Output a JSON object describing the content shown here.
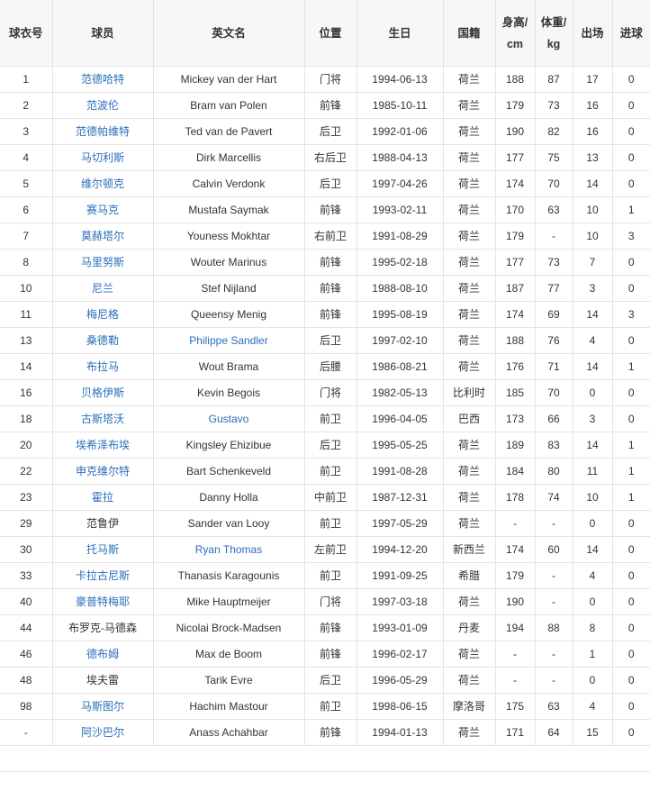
{
  "colors": {
    "link": "#2a6ebb",
    "text": "#333333",
    "header_bg": "#f7f7f7",
    "border": "#e4e4e4"
  },
  "headers": [
    "球衣号",
    "球员",
    "英文名",
    "位置",
    "生日",
    "国籍",
    "身高/cm",
    "体重/kg",
    "出场",
    "进球"
  ],
  "rows": [
    {
      "no": "1",
      "cn": "范德哈特",
      "cn_link": true,
      "en": "Mickey van der Hart",
      "en_link": false,
      "pos": "门将",
      "birth": "1994-06-13",
      "nat": "荷兰",
      "h": "188",
      "w": "87",
      "apps": "17",
      "goals": "0"
    },
    {
      "no": "2",
      "cn": "范波伦",
      "cn_link": true,
      "en": "Bram van Polen",
      "en_link": false,
      "pos": "前锋",
      "birth": "1985-10-11",
      "nat": "荷兰",
      "h": "179",
      "w": "73",
      "apps": "16",
      "goals": "0"
    },
    {
      "no": "3",
      "cn": "范德帕维特",
      "cn_link": true,
      "en": "Ted van de Pavert",
      "en_link": false,
      "pos": "后卫",
      "birth": "1992-01-06",
      "nat": "荷兰",
      "h": "190",
      "w": "82",
      "apps": "16",
      "goals": "0"
    },
    {
      "no": "4",
      "cn": "马切利斯",
      "cn_link": true,
      "en": "Dirk Marcellis",
      "en_link": false,
      "pos": "右后卫",
      "birth": "1988-04-13",
      "nat": "荷兰",
      "h": "177",
      "w": "75",
      "apps": "13",
      "goals": "0"
    },
    {
      "no": "5",
      "cn": "维尔顿克",
      "cn_link": true,
      "en": "Calvin Verdonk",
      "en_link": false,
      "pos": "后卫",
      "birth": "1997-04-26",
      "nat": "荷兰",
      "h": "174",
      "w": "70",
      "apps": "14",
      "goals": "0"
    },
    {
      "no": "6",
      "cn": "赛马克",
      "cn_link": true,
      "en": "Mustafa Saymak",
      "en_link": false,
      "pos": "前锋",
      "birth": "1993-02-11",
      "nat": "荷兰",
      "h": "170",
      "w": "63",
      "apps": "10",
      "goals": "1"
    },
    {
      "no": "7",
      "cn": "莫赫塔尔",
      "cn_link": true,
      "en": "Youness Mokhtar",
      "en_link": false,
      "pos": "右前卫",
      "birth": "1991-08-29",
      "nat": "荷兰",
      "h": "179",
      "w": "-",
      "apps": "10",
      "goals": "3"
    },
    {
      "no": "8",
      "cn": "马里努斯",
      "cn_link": true,
      "en": "Wouter Marinus",
      "en_link": false,
      "pos": "前锋",
      "birth": "1995-02-18",
      "nat": "荷兰",
      "h": "177",
      "w": "73",
      "apps": "7",
      "goals": "0"
    },
    {
      "no": "10",
      "cn": "尼兰",
      "cn_link": true,
      "en": "Stef Nijland",
      "en_link": false,
      "pos": "前锋",
      "birth": "1988-08-10",
      "nat": "荷兰",
      "h": "187",
      "w": "77",
      "apps": "3",
      "goals": "0"
    },
    {
      "no": "11",
      "cn": "梅尼格",
      "cn_link": true,
      "en": "Queensy Menig",
      "en_link": false,
      "pos": "前锋",
      "birth": "1995-08-19",
      "nat": "荷兰",
      "h": "174",
      "w": "69",
      "apps": "14",
      "goals": "3"
    },
    {
      "no": "13",
      "cn": "桑德勒",
      "cn_link": true,
      "en": "Philippe Sandler",
      "en_link": true,
      "pos": "后卫",
      "birth": "1997-02-10",
      "nat": "荷兰",
      "h": "188",
      "w": "76",
      "apps": "4",
      "goals": "0"
    },
    {
      "no": "14",
      "cn": "布拉马",
      "cn_link": true,
      "en": "Wout Brama",
      "en_link": false,
      "pos": "后腰",
      "birth": "1986-08-21",
      "nat": "荷兰",
      "h": "176",
      "w": "71",
      "apps": "14",
      "goals": "1"
    },
    {
      "no": "16",
      "cn": "贝格伊斯",
      "cn_link": true,
      "en": "Kevin Begois",
      "en_link": false,
      "pos": "门将",
      "birth": "1982-05-13",
      "nat": "比利时",
      "h": "185",
      "w": "70",
      "apps": "0",
      "goals": "0"
    },
    {
      "no": "18",
      "cn": "古斯塔沃",
      "cn_link": true,
      "en": "Gustavo",
      "en_link": true,
      "pos": "前卫",
      "birth": "1996-04-05",
      "nat": "巴西",
      "h": "173",
      "w": "66",
      "apps": "3",
      "goals": "0"
    },
    {
      "no": "20",
      "cn": "埃希泽布埃",
      "cn_link": true,
      "en": "Kingsley Ehizibue",
      "en_link": false,
      "pos": "后卫",
      "birth": "1995-05-25",
      "nat": "荷兰",
      "h": "189",
      "w": "83",
      "apps": "14",
      "goals": "1"
    },
    {
      "no": "22",
      "cn": "申克维尔特",
      "cn_link": true,
      "en": "Bart Schenkeveld",
      "en_link": false,
      "pos": "前卫",
      "birth": "1991-08-28",
      "nat": "荷兰",
      "h": "184",
      "w": "80",
      "apps": "11",
      "goals": "1"
    },
    {
      "no": "23",
      "cn": "霍拉",
      "cn_link": true,
      "en": "Danny Holla",
      "en_link": false,
      "pos": "中前卫",
      "birth": "1987-12-31",
      "nat": "荷兰",
      "h": "178",
      "w": "74",
      "apps": "10",
      "goals": "1"
    },
    {
      "no": "29",
      "cn": "范鲁伊",
      "cn_link": false,
      "en": "Sander van Looy",
      "en_link": false,
      "pos": "前卫",
      "birth": "1997-05-29",
      "nat": "荷兰",
      "h": "-",
      "w": "-",
      "apps": "0",
      "goals": "0"
    },
    {
      "no": "30",
      "cn": "托马斯",
      "cn_link": true,
      "en": "Ryan Thomas",
      "en_link": true,
      "pos": "左前卫",
      "birth": "1994-12-20",
      "nat": "新西兰",
      "h": "174",
      "w": "60",
      "apps": "14",
      "goals": "0"
    },
    {
      "no": "33",
      "cn": "卡拉古尼斯",
      "cn_link": true,
      "en": "Thanasis Karagounis",
      "en_link": false,
      "pos": "前卫",
      "birth": "1991-09-25",
      "nat": "希腊",
      "h": "179",
      "w": "-",
      "apps": "4",
      "goals": "0"
    },
    {
      "no": "40",
      "cn": "豪普特梅耶",
      "cn_link": true,
      "en": "Mike Hauptmeijer",
      "en_link": false,
      "pos": "门将",
      "birth": "1997-03-18",
      "nat": "荷兰",
      "h": "190",
      "w": "-",
      "apps": "0",
      "goals": "0"
    },
    {
      "no": "44",
      "cn": "布罗克-马德森",
      "cn_link": false,
      "en": "Nicolai Brock-Madsen",
      "en_link": false,
      "pos": "前锋",
      "birth": "1993-01-09",
      "nat": "丹麦",
      "h": "194",
      "w": "88",
      "apps": "8",
      "goals": "0"
    },
    {
      "no": "46",
      "cn": "德布姆",
      "cn_link": true,
      "en": "Max de Boom",
      "en_link": false,
      "pos": "前锋",
      "birth": "1996-02-17",
      "nat": "荷兰",
      "h": "-",
      "w": "-",
      "apps": "1",
      "goals": "0"
    },
    {
      "no": "48",
      "cn": "埃夫雷",
      "cn_link": false,
      "en": "Tarik Evre",
      "en_link": false,
      "pos": "后卫",
      "birth": "1996-05-29",
      "nat": "荷兰",
      "h": "-",
      "w": "-",
      "apps": "0",
      "goals": "0"
    },
    {
      "no": "98",
      "cn": "马斯图尔",
      "cn_link": true,
      "en": "Hachim Mastour",
      "en_link": false,
      "pos": "前卫",
      "birth": "1998-06-15",
      "nat": "摩洛哥",
      "h": "175",
      "w": "63",
      "apps": "4",
      "goals": "0"
    },
    {
      "no": "-",
      "cn": "阿沙巴尔",
      "cn_link": true,
      "en": "Anass Achahbar",
      "en_link": false,
      "pos": "前锋",
      "birth": "1994-01-13",
      "nat": "荷兰",
      "h": "171",
      "w": "64",
      "apps": "15",
      "goals": "0"
    }
  ]
}
